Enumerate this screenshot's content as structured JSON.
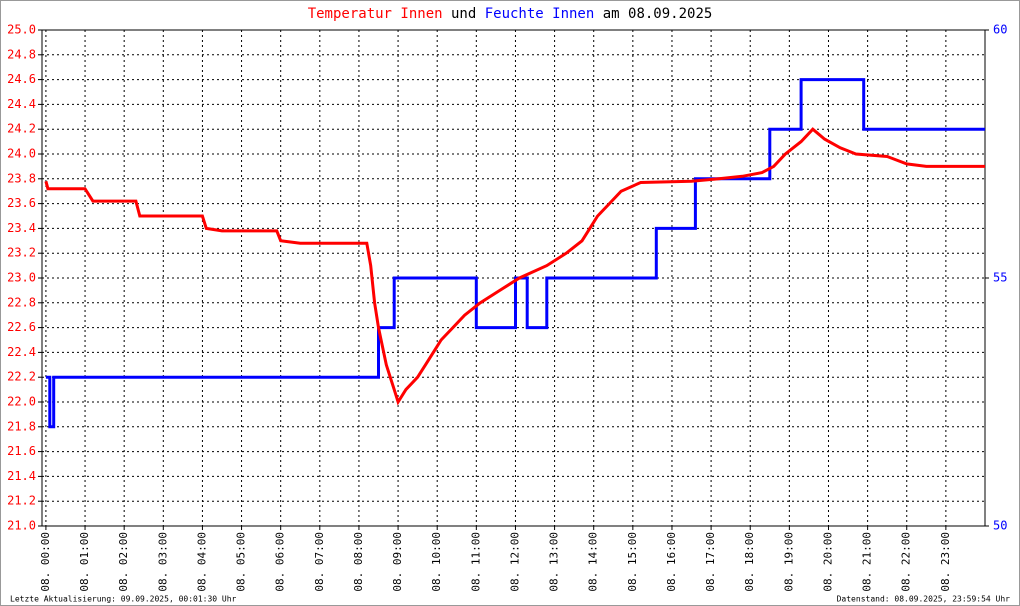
{
  "chart_data": {
    "type": "line",
    "title_parts": [
      {
        "text": "Temperatur Innen",
        "color": "#ff0000"
      },
      {
        "text": "und",
        "color": "#000000"
      },
      {
        "text": "Feuchte Innen",
        "color": "#0000ff"
      },
      {
        "text": "am 08.09.2025",
        "color": "#000000"
      }
    ],
    "footer_left": "Letzte Aktualisierung: 09.09.2025, 00:01:30 Uhr",
    "footer_right": "Datenstand: 08.09.2025, 23:59:54 Uhr",
    "grid": true,
    "xlim": [
      -0.1,
      24.0
    ],
    "xticks": [
      {
        "value": 0,
        "label": "08. 00:00"
      },
      {
        "value": 1,
        "label": "08. 01:00"
      },
      {
        "value": 2,
        "label": "08. 02:00"
      },
      {
        "value": 3,
        "label": "08. 03:00"
      },
      {
        "value": 4,
        "label": "08. 04:00"
      },
      {
        "value": 5,
        "label": "08. 05:00"
      },
      {
        "value": 6,
        "label": "08. 06:00"
      },
      {
        "value": 7,
        "label": "08. 07:00"
      },
      {
        "value": 8,
        "label": "08. 08:00"
      },
      {
        "value": 9,
        "label": "08. 09:00"
      },
      {
        "value": 10,
        "label": "08. 10:00"
      },
      {
        "value": 11,
        "label": "08. 11:00"
      },
      {
        "value": 12,
        "label": "08. 12:00"
      },
      {
        "value": 13,
        "label": "08. 13:00"
      },
      {
        "value": 14,
        "label": "08. 14:00"
      },
      {
        "value": 15,
        "label": "08. 15:00"
      },
      {
        "value": 16,
        "label": "08. 16:00"
      },
      {
        "value": 17,
        "label": "08. 17:00"
      },
      {
        "value": 18,
        "label": "08. 18:00"
      },
      {
        "value": 19,
        "label": "08. 19:00"
      },
      {
        "value": 20,
        "label": "08. 20:00"
      },
      {
        "value": 21,
        "label": "08. 21:00"
      },
      {
        "value": 22,
        "label": "08. 22:00"
      },
      {
        "value": 23,
        "label": "08. 23:00"
      }
    ],
    "ylim": [
      21,
      25
    ],
    "yticks": [
      {
        "value": 21,
        "label": "21.0"
      },
      21.2,
      21.4,
      21.6,
      21.8,
      {
        "value": 22,
        "label": "22.0"
      },
      22.2,
      22.4,
      22.6,
      22.8,
      {
        "value": 23,
        "label": "23.0"
      },
      23.2,
      23.4,
      23.6,
      23.8,
      {
        "value": 24,
        "label": "24.0"
      },
      24.2,
      24.4,
      24.6,
      24.8,
      {
        "value": 25,
        "label": "25.0"
      }
    ],
    "y_tick_color": "#ff0000",
    "y2lim": [
      50,
      60
    ],
    "y2ticks": [
      50,
      55,
      60
    ],
    "y2_tick_color": "#0000ff",
    "series": [
      {
        "name": "Temperatur Innen",
        "color": "#ff0000",
        "x": [
          0.0,
          0.05,
          1.0,
          1.2,
          2.3,
          2.4,
          4.0,
          4.1,
          4.5,
          5.9,
          6.0,
          6.5,
          8.2,
          8.3,
          8.4,
          8.5,
          8.7,
          8.9,
          9.0,
          9.2,
          9.5,
          9.7,
          9.9,
          10.1,
          10.4,
          10.7,
          11.1,
          11.6,
          12.1,
          12.8,
          13.3,
          13.7,
          13.9,
          14.1,
          14.4,
          14.7,
          15.2,
          16.5,
          17.2,
          17.8,
          18.3,
          18.6,
          18.9,
          19.3,
          19.6,
          19.9,
          20.3,
          20.7,
          21.5,
          22.0,
          22.5,
          24.0
        ],
        "values": [
          23.78,
          23.72,
          23.72,
          23.62,
          23.62,
          23.5,
          23.5,
          23.4,
          23.38,
          23.38,
          23.3,
          23.28,
          23.28,
          23.1,
          22.8,
          22.6,
          22.3,
          22.1,
          22.0,
          22.1,
          22.2,
          22.3,
          22.4,
          22.5,
          22.6,
          22.7,
          22.8,
          22.9,
          23.0,
          23.1,
          23.2,
          23.3,
          23.4,
          23.5,
          23.6,
          23.7,
          23.77,
          23.78,
          23.8,
          23.82,
          23.85,
          23.9,
          24.0,
          24.1,
          24.2,
          24.12,
          24.05,
          24.0,
          23.98,
          23.92,
          23.9,
          23.9
        ]
      },
      {
        "name": "Feuchte Innen",
        "color": "#0000ff",
        "axis": "y2",
        "x": [
          0,
          0.1,
          0.1,
          0.2,
          0.2,
          8.5,
          8.5,
          8.9,
          8.9,
          11.0,
          11.0,
          12.0,
          12.0,
          12.3,
          12.3,
          12.8,
          12.8,
          15.6,
          15.6,
          16.6,
          16.6,
          18.5,
          18.5,
          19.3,
          19.3,
          20.9,
          20.9,
          24.0
        ],
        "values": [
          53,
          53,
          52,
          52,
          53,
          53,
          54,
          54,
          55,
          55,
          54,
          54,
          55,
          55,
          54,
          54,
          55,
          55,
          56,
          56,
          57,
          57,
          58,
          58,
          59,
          59,
          58,
          58
        ]
      }
    ]
  }
}
